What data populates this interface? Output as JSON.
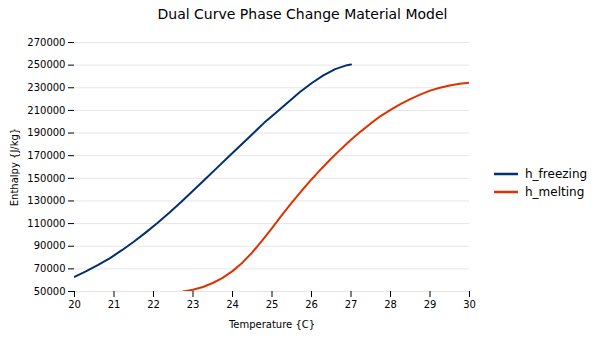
{
  "chart_data": {
    "type": "line",
    "title": "Dual Curve Phase Change Material Model",
    "xlabel": "Temperature {C}",
    "ylabel": "Enthalpy {J/kg}",
    "xlim": [
      20,
      30
    ],
    "ylim": [
      50000,
      270000
    ],
    "xticks": [
      20,
      21,
      22,
      23,
      24,
      25,
      26,
      27,
      28,
      29,
      30
    ],
    "yticks": [
      50000,
      70000,
      90000,
      110000,
      130000,
      150000,
      170000,
      190000,
      210000,
      230000,
      250000,
      270000
    ],
    "grid": "y",
    "legend": "right",
    "series": [
      {
        "name": "h_freezing",
        "color": "#003070",
        "x": [
          20.0,
          20.3,
          20.6,
          20.9,
          21.2,
          21.5,
          21.8,
          22.1,
          22.4,
          22.7,
          23.0,
          23.3,
          23.6,
          23.9,
          24.2,
          24.5,
          24.8,
          25.1,
          25.4,
          25.7,
          26.0,
          26.3,
          26.6,
          26.9,
          27.0
        ],
        "values": [
          63000,
          68000,
          73500,
          79500,
          86500,
          94000,
          102000,
          110500,
          119500,
          129000,
          139000,
          149000,
          159000,
          169000,
          179000,
          189000,
          199000,
          208000,
          217000,
          226000,
          234000,
          241000,
          246500,
          250000,
          250500
        ]
      },
      {
        "name": "h_melting",
        "color": "#dd3300",
        "x": [
          22.75,
          23.0,
          23.25,
          23.5,
          23.75,
          24.0,
          24.25,
          24.5,
          24.75,
          25.0,
          25.25,
          25.5,
          25.75,
          26.0,
          26.25,
          26.5,
          26.75,
          27.0,
          27.25,
          27.5,
          27.75,
          28.0,
          28.25,
          28.5,
          28.75,
          29.0,
          29.25,
          29.5,
          29.75,
          30.0
        ],
        "values": [
          50000,
          51500,
          54000,
          57500,
          62000,
          68000,
          75500,
          84500,
          95000,
          106000,
          117500,
          128500,
          139000,
          149000,
          158500,
          167500,
          176000,
          184000,
          191500,
          198500,
          205000,
          210500,
          215500,
          220000,
          224000,
          227500,
          230000,
          232000,
          233500,
          234500
        ]
      }
    ]
  }
}
